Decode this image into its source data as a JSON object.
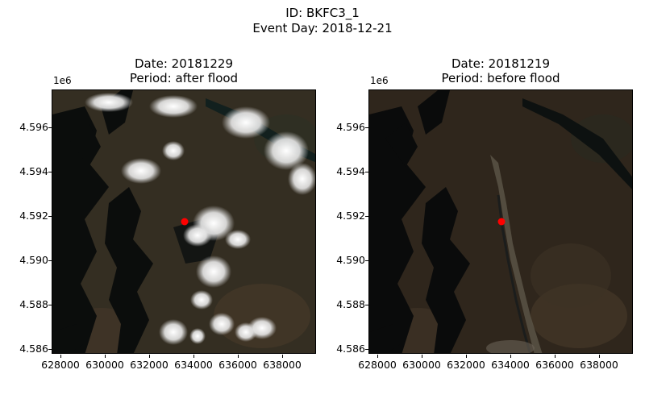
{
  "figure": {
    "id_line": "ID: BKFC3_1",
    "event_line": "Event Day: 2018-12-21"
  },
  "panels": [
    {
      "title_line1": "Date: 20181229",
      "title_line2": "Period: after flood",
      "axis_multiplier": "1e6",
      "cloud_cover": "heavy"
    },
    {
      "title_line1": "Date: 20181219",
      "title_line2": "Period: before flood",
      "axis_multiplier": "1e6",
      "cloud_cover": "none"
    }
  ],
  "y_ticks": [
    "4.596",
    "4.594",
    "4.592",
    "4.590",
    "4.588",
    "4.586"
  ],
  "x_ticks": [
    "628000",
    "630000",
    "632000",
    "634000",
    "636000",
    "638000"
  ],
  "marker": {
    "color": "#ff0000",
    "x": 633300,
    "y": 4591750
  },
  "colors": {
    "land": "#3a3023",
    "water": "#0b0d0c",
    "cloud": "#f2f2f2"
  }
}
